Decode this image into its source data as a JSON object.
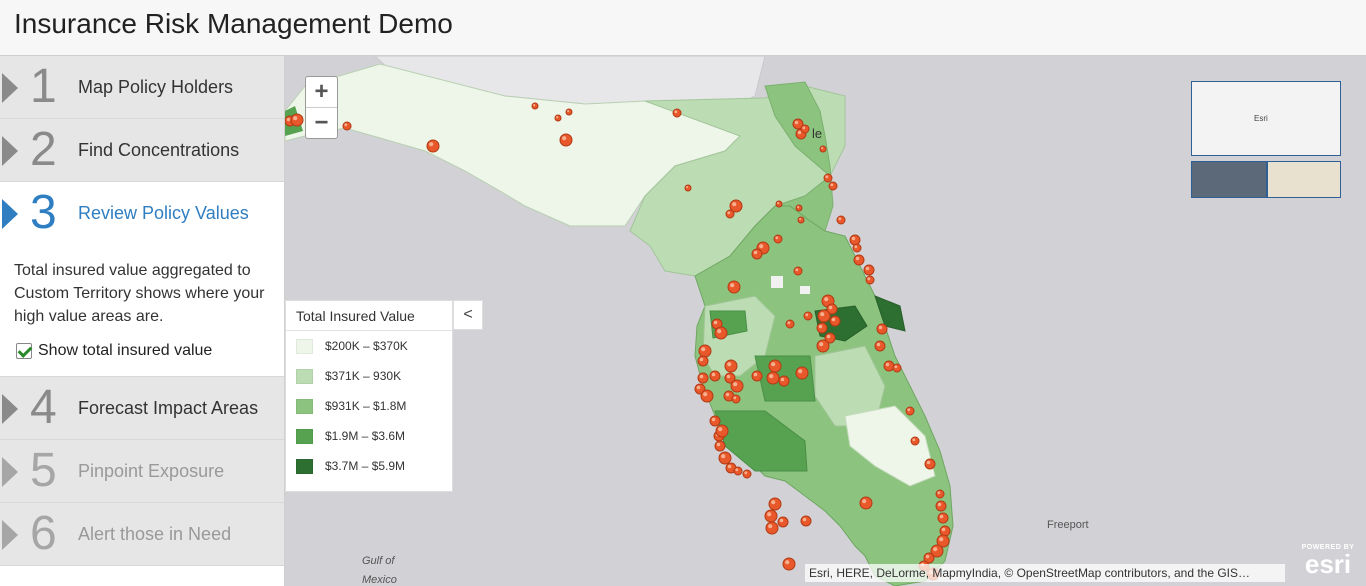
{
  "app": {
    "title": "Insurance Risk Management Demo"
  },
  "steps": [
    {
      "num": "1",
      "label": "Map Policy Holders"
    },
    {
      "num": "2",
      "label": "Find Concentrations"
    },
    {
      "num": "3",
      "label": "Review Policy Values",
      "description": "Total insured value aggregated to Custom Territory shows where your high value areas are.",
      "checkbox_label": "Show total insured value",
      "checked": true
    },
    {
      "num": "4",
      "label": "Forecast Impact Areas"
    },
    {
      "num": "5",
      "label": "Pinpoint Exposure"
    },
    {
      "num": "6",
      "label": "Alert those in Need"
    }
  ],
  "map": {
    "zoom_in": "+",
    "zoom_out": "−",
    "legend": {
      "title": "Total Insured Value",
      "collapse": "<",
      "items": [
        {
          "label": "$200K – $370K",
          "color": "#edf6e9"
        },
        {
          "label": "$371K – 930K",
          "color": "#bcdcb3"
        },
        {
          "label": "$931K – $1.8M",
          "color": "#8cc47f"
        },
        {
          "label": "$1.9M – $3.6M",
          "color": "#56a251"
        },
        {
          "label": "$3.7M – $5.9M",
          "color": "#2d6e31"
        }
      ]
    },
    "labels": {
      "gulf1": "Gulf of",
      "gulf2": "Mexico",
      "freeport": "Freeport",
      "le": "le",
      "basemap_esri": "Esri"
    },
    "attribution": "Esri, HERE, DeLorme, MapmyIndia, © OpenStreetMap contributors, and the GIS…",
    "powered_by": "POWERED BY",
    "esri_logo": "esri",
    "accent_color": "#2f7ec1",
    "marker_color": "#e8582a"
  }
}
